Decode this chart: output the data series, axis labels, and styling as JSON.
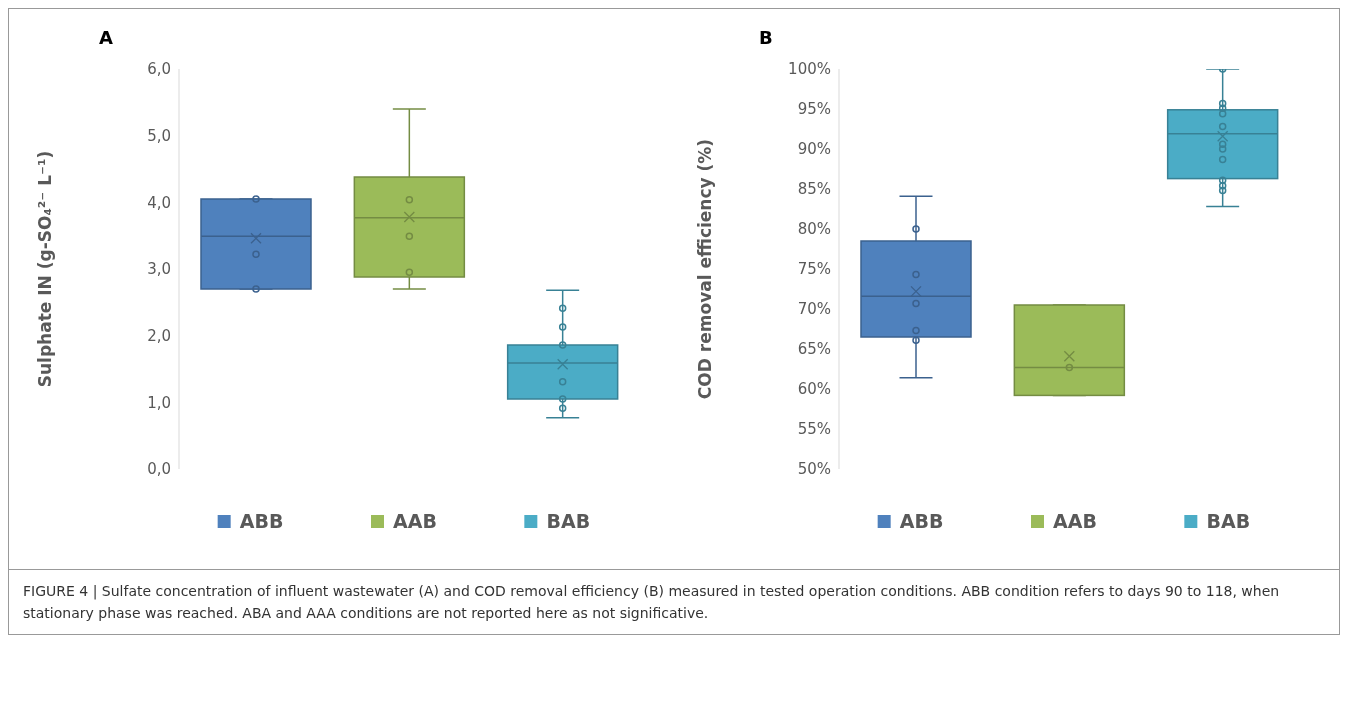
{
  "chart_data": [
    {
      "type": "box",
      "title": "A",
      "ylabel": "Sulphate IN (g-SO₄²⁻ L⁻¹)",
      "categories": [
        "ABB",
        "AAB",
        "BAB"
      ],
      "colors": [
        "#4f81bd",
        "#9bbb59",
        "#4bacc6"
      ],
      "ylim": [
        0,
        6
      ],
      "yticks": [
        {
          "value": 0,
          "label": "0,0"
        },
        {
          "value": 1,
          "label": "1,0"
        },
        {
          "value": 2,
          "label": "2,0"
        },
        {
          "value": 3,
          "label": "3,0"
        },
        {
          "value": 4,
          "label": "4,0"
        },
        {
          "value": 5,
          "label": "5,0"
        },
        {
          "value": 6,
          "label": "6,0"
        }
      ],
      "boxes": [
        {
          "low": 2.7,
          "q1": 2.7,
          "median": 3.49,
          "q3": 4.05,
          "high": 4.05,
          "mean": 3.46,
          "outliers": [
            4.05,
            3.22,
            2.7
          ]
        },
        {
          "low": 2.7,
          "q1": 2.88,
          "median": 3.77,
          "q3": 4.38,
          "high": 5.4,
          "mean": 3.78,
          "outliers": [
            4.04,
            3.49,
            2.95
          ]
        },
        {
          "low": 0.77,
          "q1": 1.05,
          "median": 1.59,
          "q3": 1.86,
          "high": 2.68,
          "mean": 1.57,
          "outliers": [
            2.41,
            2.13,
            1.86,
            1.31,
            1.05,
            0.91
          ]
        }
      ]
    },
    {
      "type": "box",
      "title": "B",
      "ylabel": "COD removal efficiency (%)",
      "categories": [
        "ABB",
        "AAB",
        "BAB"
      ],
      "colors": [
        "#4f81bd",
        "#9bbb59",
        "#4bacc6"
      ],
      "ylim": [
        50,
        100
      ],
      "yticks": [
        {
          "value": 50,
          "label": "50%"
        },
        {
          "value": 55,
          "label": "55%"
        },
        {
          "value": 60,
          "label": "60%"
        },
        {
          "value": 65,
          "label": "65%"
        },
        {
          "value": 70,
          "label": "70%"
        },
        {
          "value": 75,
          "label": "75%"
        },
        {
          "value": 80,
          "label": "80%"
        },
        {
          "value": 85,
          "label": "85%"
        },
        {
          "value": 90,
          "label": "90%"
        },
        {
          "value": 95,
          "label": "95%"
        },
        {
          "value": 100,
          "label": "100%"
        }
      ],
      "boxes": [
        {
          "low": 61.4,
          "q1": 66.5,
          "median": 71.6,
          "q3": 78.5,
          "high": 84.1,
          "mean": 72.2,
          "outliers": [
            80.0,
            74.3,
            70.7,
            67.3,
            66.1
          ]
        },
        {
          "low": 59.2,
          "q1": 59.2,
          "median": 62.7,
          "q3": 70.5,
          "high": 70.5,
          "mean": 64.1,
          "outliers": [
            62.7
          ]
        },
        {
          "low": 82.8,
          "q1": 86.3,
          "median": 91.9,
          "q3": 94.9,
          "high": 100,
          "mean": 91.6,
          "outliers": [
            100,
            95.7,
            95.1,
            94.4,
            92.8,
            90.6,
            90.0,
            88.7,
            86.1,
            85.4,
            84.8
          ]
        }
      ],
      "annotations": [
        "FIGURE 4 | Sulfate concentration of influent wastewater (A) and COD removal efficiency (B) measured in tested operation conditions. ABB condition refers to days 90 to 118, when stationary phase was reached. ABA and AAA conditions are not reported here as not significative."
      ]
    }
  ]
}
